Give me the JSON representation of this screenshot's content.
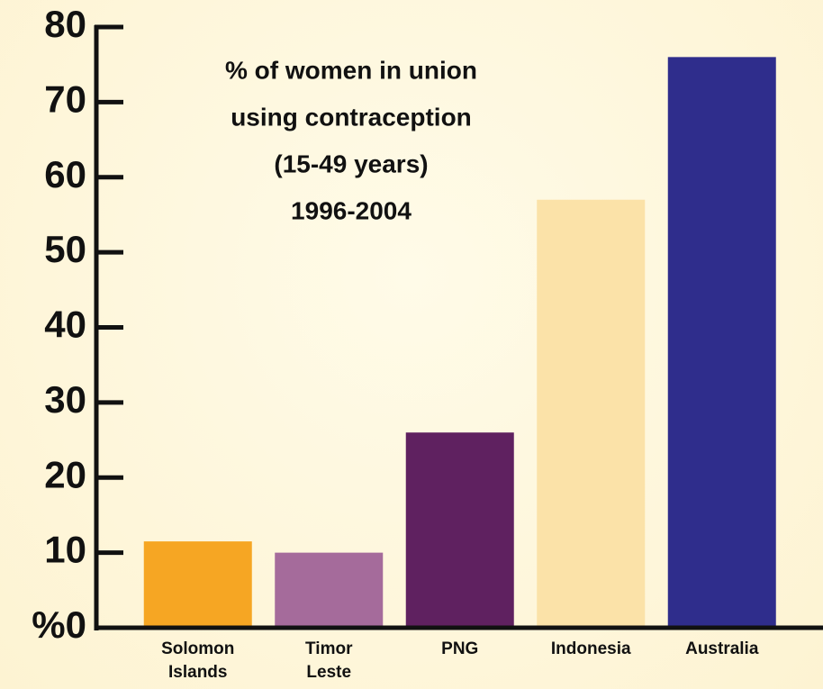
{
  "chart_data": {
    "type": "bar",
    "title": [
      "% of women in union",
      "using contraception",
      "(15-49 years)",
      "1996-2004"
    ],
    "categories": [
      "Solomon Islands",
      "Timor Leste",
      "PNG",
      "Indonesia",
      "Australia"
    ],
    "values": [
      11.5,
      10,
      26,
      57,
      76
    ],
    "colors": [
      "#f6a623",
      "#a56b9b",
      "#5f2160",
      "#fbe2a8",
      "#2f2d8c"
    ],
    "ylim": [
      0,
      80
    ],
    "yticks": [
      {
        "value": 0,
        "label": "%0"
      },
      10,
      20,
      30,
      40,
      50,
      60,
      70,
      80
    ],
    "grid": false
  }
}
